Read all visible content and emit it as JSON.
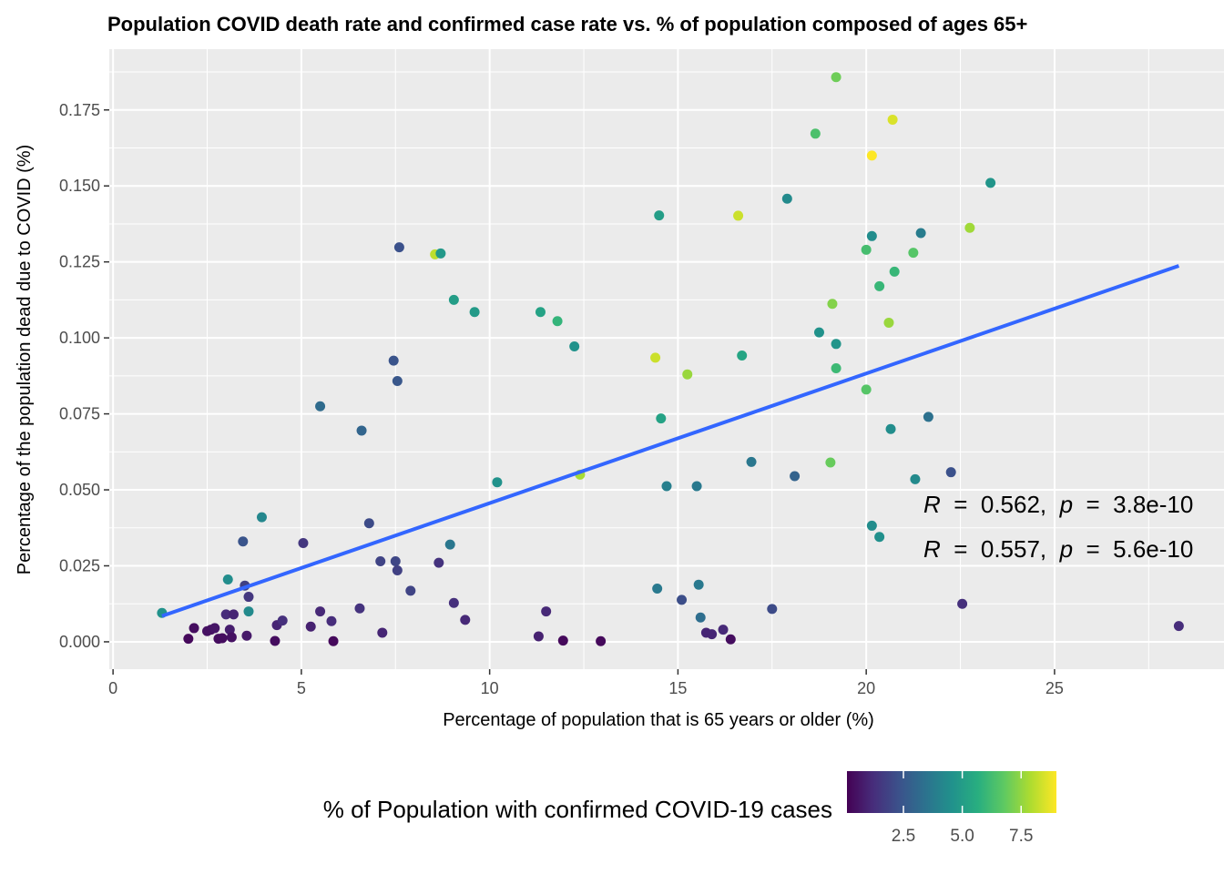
{
  "chart_data": {
    "type": "scatter",
    "title": "Population COVID death rate and confirmed case rate vs. % of population composed of ages 65+",
    "xlabel": "Percentage of population that is 65 years or older (%)",
    "ylabel": "Percentage of the population dead due to COVID (%)",
    "xlim": [
      -0.1,
      29.5
    ],
    "ylim": [
      -0.009,
      0.195
    ],
    "x_ticks": [
      0,
      5,
      10,
      15,
      20,
      25
    ],
    "x_tick_labels": [
      "0",
      "5",
      "10",
      "15",
      "20",
      "25"
    ],
    "y_ticks": [
      0.0,
      0.025,
      0.05,
      0.075,
      0.1,
      0.125,
      0.15,
      0.175
    ],
    "y_tick_labels": [
      "0.000",
      "0.025",
      "0.050",
      "0.075",
      "0.100",
      "0.125",
      "0.150",
      "0.175"
    ],
    "grid": true,
    "panel_background": "#ebebeb",
    "trend_line": {
      "x": [
        1.3,
        28.3
      ],
      "y": [
        0.0085,
        0.1237
      ],
      "color": "#3366ff"
    },
    "annotations": [
      {
        "text": "R  =  0.562,  p  =  3.8e-10",
        "r": "0.562",
        "p": "3.8e-10"
      },
      {
        "text": "R  =  0.557,  p  =  5.6e-10",
        "r": "0.557",
        "p": "5.6e-10"
      }
    ],
    "legend": {
      "title": "% of Population with confirmed COVID-19 cases",
      "position": "bottom",
      "range": [
        0.1,
        9.0
      ],
      "ticks": [
        2.5,
        5.0,
        7.5
      ],
      "tick_labels": [
        "2.5",
        "5.0",
        "7.5"
      ],
      "palette": "viridis"
    },
    "points": [
      {
        "x": 1.3,
        "y": 0.0095,
        "c": 4.6
      },
      {
        "x": 2.0,
        "y": 0.001,
        "c": 0.3
      },
      {
        "x": 2.15,
        "y": 0.0045,
        "c": 0.4
      },
      {
        "x": 2.5,
        "y": 0.0035,
        "c": 0.5
      },
      {
        "x": 2.6,
        "y": 0.004,
        "c": 0.5
      },
      {
        "x": 2.7,
        "y": 0.0045,
        "c": 0.6
      },
      {
        "x": 2.8,
        "y": 0.001,
        "c": 0.4
      },
      {
        "x": 2.9,
        "y": 0.0012,
        "c": 0.4
      },
      {
        "x": 3.0,
        "y": 0.009,
        "c": 1.2
      },
      {
        "x": 3.05,
        "y": 0.0205,
        "c": 4.4
      },
      {
        "x": 3.1,
        "y": 0.004,
        "c": 0.8
      },
      {
        "x": 3.15,
        "y": 0.0015,
        "c": 0.5
      },
      {
        "x": 3.2,
        "y": 0.009,
        "c": 1.0
      },
      {
        "x": 3.45,
        "y": 0.033,
        "c": 2.4
      },
      {
        "x": 3.5,
        "y": 0.0185,
        "c": 1.8
      },
      {
        "x": 3.55,
        "y": 0.002,
        "c": 0.7
      },
      {
        "x": 3.6,
        "y": 0.01,
        "c": 4.3
      },
      {
        "x": 3.6,
        "y": 0.0148,
        "c": 1.5
      },
      {
        "x": 3.95,
        "y": 0.041,
        "c": 4.2
      },
      {
        "x": 4.3,
        "y": 0.0003,
        "c": 0.4
      },
      {
        "x": 4.35,
        "y": 0.0055,
        "c": 1.0
      },
      {
        "x": 4.5,
        "y": 0.007,
        "c": 1.3
      },
      {
        "x": 5.05,
        "y": 0.0325,
        "c": 1.5
      },
      {
        "x": 5.25,
        "y": 0.005,
        "c": 0.9
      },
      {
        "x": 5.5,
        "y": 0.01,
        "c": 1.1
      },
      {
        "x": 5.5,
        "y": 0.0775,
        "c": 3.2
      },
      {
        "x": 5.8,
        "y": 0.0068,
        "c": 1.2
      },
      {
        "x": 5.85,
        "y": 0.0002,
        "c": 0.3
      },
      {
        "x": 6.55,
        "y": 0.011,
        "c": 1.4
      },
      {
        "x": 6.6,
        "y": 0.0695,
        "c": 3.0
      },
      {
        "x": 6.8,
        "y": 0.039,
        "c": 2.1
      },
      {
        "x": 7.1,
        "y": 0.0265,
        "c": 1.9
      },
      {
        "x": 7.15,
        "y": 0.003,
        "c": 1.0
      },
      {
        "x": 7.45,
        "y": 0.0925,
        "c": 2.4
      },
      {
        "x": 7.5,
        "y": 0.0265,
        "c": 2.0
      },
      {
        "x": 7.55,
        "y": 0.0235,
        "c": 1.8
      },
      {
        "x": 7.55,
        "y": 0.0858,
        "c": 2.5
      },
      {
        "x": 7.6,
        "y": 0.1298,
        "c": 2.3
      },
      {
        "x": 7.9,
        "y": 0.0168,
        "c": 1.9
      },
      {
        "x": 8.55,
        "y": 0.1275,
        "c": 8.1
      },
      {
        "x": 8.65,
        "y": 0.026,
        "c": 1.4
      },
      {
        "x": 8.7,
        "y": 0.1278,
        "c": 4.8
      },
      {
        "x": 8.95,
        "y": 0.032,
        "c": 3.6
      },
      {
        "x": 9.05,
        "y": 0.1125,
        "c": 5.0
      },
      {
        "x": 9.05,
        "y": 0.0128,
        "c": 1.3
      },
      {
        "x": 9.35,
        "y": 0.0072,
        "c": 1.1
      },
      {
        "x": 9.6,
        "y": 0.1085,
        "c": 4.9
      },
      {
        "x": 10.2,
        "y": 0.0525,
        "c": 4.6
      },
      {
        "x": 11.3,
        "y": 0.0018,
        "c": 0.9
      },
      {
        "x": 11.35,
        "y": 0.1085,
        "c": 5.2
      },
      {
        "x": 11.5,
        "y": 0.01,
        "c": 1.1
      },
      {
        "x": 11.8,
        "y": 0.1055,
        "c": 5.9
      },
      {
        "x": 11.95,
        "y": 0.0004,
        "c": 0.3
      },
      {
        "x": 12.25,
        "y": 0.0972,
        "c": 4.6
      },
      {
        "x": 12.4,
        "y": 0.055,
        "c": 7.8
      },
      {
        "x": 12.95,
        "y": 0.0002,
        "c": 0.3
      },
      {
        "x": 14.4,
        "y": 0.0935,
        "c": 8.3
      },
      {
        "x": 14.45,
        "y": 0.0175,
        "c": 3.7
      },
      {
        "x": 14.5,
        "y": 0.1403,
        "c": 5.0
      },
      {
        "x": 14.55,
        "y": 0.0735,
        "c": 5.2
      },
      {
        "x": 14.7,
        "y": 0.0512,
        "c": 3.9
      },
      {
        "x": 15.1,
        "y": 0.0138,
        "c": 2.2
      },
      {
        "x": 15.25,
        "y": 0.088,
        "c": 7.6
      },
      {
        "x": 15.5,
        "y": 0.0512,
        "c": 3.7
      },
      {
        "x": 15.55,
        "y": 0.0188,
        "c": 3.7
      },
      {
        "x": 15.6,
        "y": 0.008,
        "c": 3.3
      },
      {
        "x": 15.75,
        "y": 0.003,
        "c": 1.0
      },
      {
        "x": 15.9,
        "y": 0.0025,
        "c": 1.0
      },
      {
        "x": 16.2,
        "y": 0.004,
        "c": 1.1
      },
      {
        "x": 16.4,
        "y": 0.0008,
        "c": 0.4
      },
      {
        "x": 16.6,
        "y": 0.1402,
        "c": 8.3
      },
      {
        "x": 16.7,
        "y": 0.0942,
        "c": 5.3
      },
      {
        "x": 16.95,
        "y": 0.0592,
        "c": 3.6
      },
      {
        "x": 17.5,
        "y": 0.0108,
        "c": 2.1
      },
      {
        "x": 17.9,
        "y": 0.1458,
        "c": 4.3
      },
      {
        "x": 18.1,
        "y": 0.0545,
        "c": 2.9
      },
      {
        "x": 18.65,
        "y": 0.1672,
        "c": 6.4
      },
      {
        "x": 18.75,
        "y": 0.1018,
        "c": 4.6
      },
      {
        "x": 19.05,
        "y": 0.059,
        "c": 6.9
      },
      {
        "x": 19.1,
        "y": 0.1112,
        "c": 7.3
      },
      {
        "x": 19.2,
        "y": 0.1858,
        "c": 7.0
      },
      {
        "x": 19.2,
        "y": 0.09,
        "c": 6.1
      },
      {
        "x": 19.2,
        "y": 0.098,
        "c": 4.7
      },
      {
        "x": 20.0,
        "y": 0.129,
        "c": 6.3
      },
      {
        "x": 20.0,
        "y": 0.083,
        "c": 6.6
      },
      {
        "x": 20.15,
        "y": 0.16,
        "c": 9.0
      },
      {
        "x": 20.15,
        "y": 0.1335,
        "c": 4.4
      },
      {
        "x": 20.15,
        "y": 0.0382,
        "c": 4.4
      },
      {
        "x": 20.35,
        "y": 0.117,
        "c": 6.0
      },
      {
        "x": 20.35,
        "y": 0.0345,
        "c": 4.5
      },
      {
        "x": 20.6,
        "y": 0.105,
        "c": 7.6
      },
      {
        "x": 20.65,
        "y": 0.07,
        "c": 4.4
      },
      {
        "x": 20.7,
        "y": 0.1718,
        "c": 8.5
      },
      {
        "x": 20.75,
        "y": 0.1218,
        "c": 6.0
      },
      {
        "x": 21.25,
        "y": 0.128,
        "c": 6.6
      },
      {
        "x": 21.3,
        "y": 0.0535,
        "c": 4.3
      },
      {
        "x": 21.45,
        "y": 0.1345,
        "c": 3.8
      },
      {
        "x": 21.65,
        "y": 0.074,
        "c": 3.4
      },
      {
        "x": 22.25,
        "y": 0.0558,
        "c": 2.3
      },
      {
        "x": 22.55,
        "y": 0.0125,
        "c": 1.3
      },
      {
        "x": 22.75,
        "y": 0.1362,
        "c": 7.7
      },
      {
        "x": 23.3,
        "y": 0.151,
        "c": 4.7
      },
      {
        "x": 28.3,
        "y": 0.0052,
        "c": 1.2
      }
    ]
  }
}
